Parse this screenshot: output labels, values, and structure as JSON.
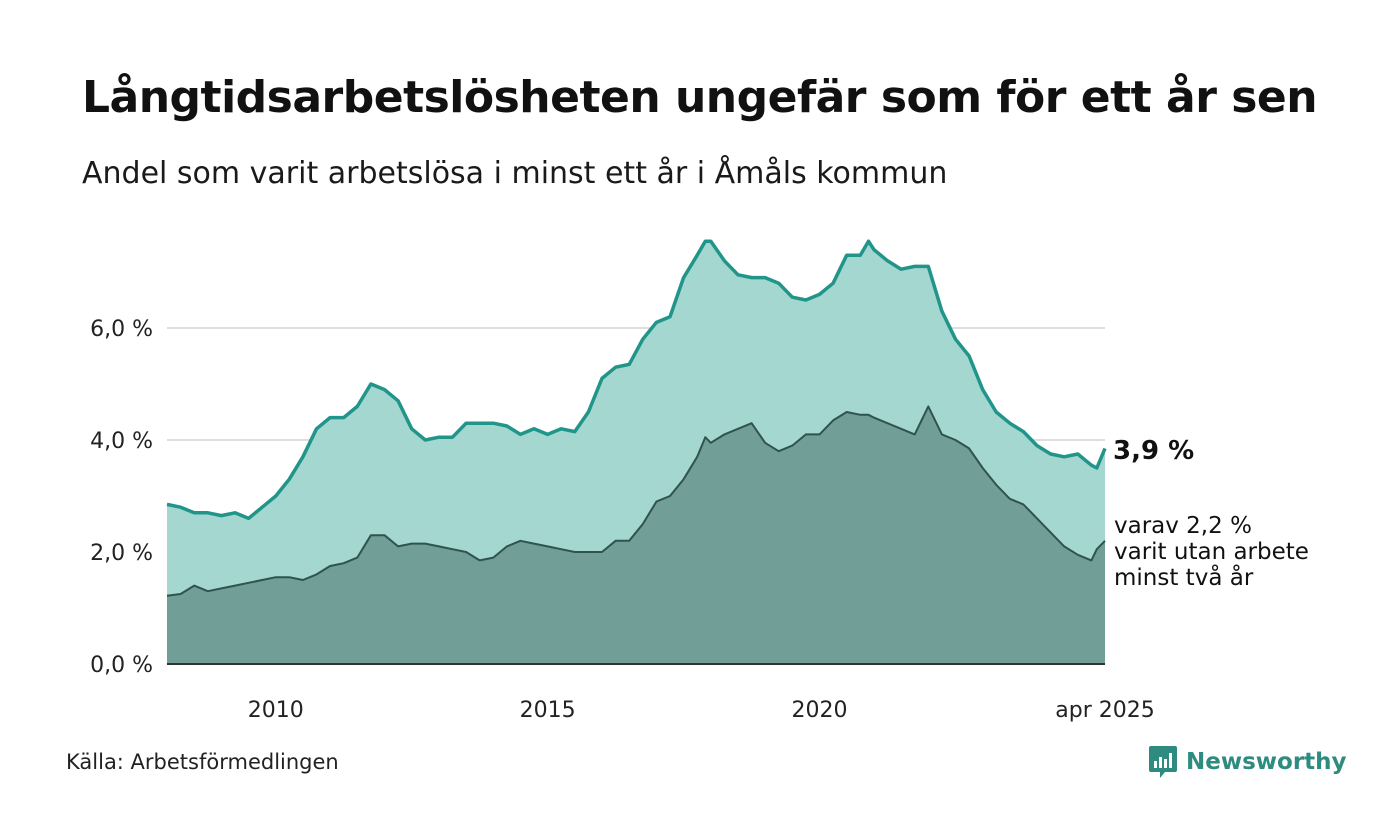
{
  "title": "Långtidsarbetslösheten ungefär som för ett år sen",
  "subtitle": "Andel som varit arbetslösa i minst ett år i Åmåls kommun",
  "source": "Källa: Arbetsförmedlingen",
  "brand": {
    "name": "Newsworthy",
    "logo_icon": "chart-bars-icon"
  },
  "colors": {
    "total_line": "#21958a",
    "total_fill": "#a5d7d1",
    "long_line": "#2f5350",
    "long_fill": "#719e97",
    "grid": "#dedede",
    "brand": "#2e8b80"
  },
  "chart_data": {
    "type": "area",
    "x_axis": {
      "range": [
        2008.0,
        2025.25
      ],
      "tick_labels": [
        "2010",
        "2015",
        "2020",
        "apr 2025"
      ],
      "tick_values": [
        2010,
        2015,
        2020,
        2025.25
      ]
    },
    "y_axis": {
      "range": [
        0,
        8
      ],
      "tick_labels": [
        "0,0 %",
        "2,0 %",
        "4,0 %",
        "6,0 %"
      ],
      "tick_values": [
        0,
        2,
        4,
        6
      ],
      "grid": true
    },
    "series": [
      {
        "key": "total",
        "end_label": "3,9 %",
        "points": [
          [
            2008.0,
            2.85
          ],
          [
            2008.25,
            2.8
          ],
          [
            2008.5,
            2.7
          ],
          [
            2008.75,
            2.7
          ],
          [
            2009.0,
            2.65
          ],
          [
            2009.25,
            2.7
          ],
          [
            2009.5,
            2.6
          ],
          [
            2009.75,
            2.8
          ],
          [
            2010.0,
            3.0
          ],
          [
            2010.25,
            3.3
          ],
          [
            2010.5,
            3.7
          ],
          [
            2010.75,
            4.2
          ],
          [
            2011.0,
            4.4
          ],
          [
            2011.25,
            4.4
          ],
          [
            2011.5,
            4.6
          ],
          [
            2011.75,
            5.0
          ],
          [
            2012.0,
            4.9
          ],
          [
            2012.25,
            4.7
          ],
          [
            2012.5,
            4.2
          ],
          [
            2012.75,
            4.0
          ],
          [
            2013.0,
            4.05
          ],
          [
            2013.25,
            4.05
          ],
          [
            2013.5,
            4.3
          ],
          [
            2013.75,
            4.3
          ],
          [
            2014.0,
            4.3
          ],
          [
            2014.25,
            4.25
          ],
          [
            2014.5,
            4.1
          ],
          [
            2014.75,
            4.2
          ],
          [
            2015.0,
            4.1
          ],
          [
            2015.25,
            4.2
          ],
          [
            2015.5,
            4.15
          ],
          [
            2015.75,
            4.5
          ],
          [
            2016.0,
            5.1
          ],
          [
            2016.25,
            5.3
          ],
          [
            2016.5,
            5.35
          ],
          [
            2016.75,
            5.8
          ],
          [
            2017.0,
            6.1
          ],
          [
            2017.25,
            6.2
          ],
          [
            2017.5,
            6.9
          ],
          [
            2017.75,
            7.3
          ],
          [
            2017.9,
            7.55
          ],
          [
            2018.0,
            7.55
          ],
          [
            2018.25,
            7.2
          ],
          [
            2018.5,
            6.95
          ],
          [
            2018.75,
            6.9
          ],
          [
            2019.0,
            6.9
          ],
          [
            2019.25,
            6.8
          ],
          [
            2019.5,
            6.55
          ],
          [
            2019.75,
            6.5
          ],
          [
            2020.0,
            6.6
          ],
          [
            2020.25,
            6.8
          ],
          [
            2020.5,
            7.3
          ],
          [
            2020.75,
            7.3
          ],
          [
            2020.9,
            7.55
          ],
          [
            2021.0,
            7.4
          ],
          [
            2021.25,
            7.2
          ],
          [
            2021.5,
            7.05
          ],
          [
            2021.75,
            7.1
          ],
          [
            2022.0,
            7.1
          ],
          [
            2022.25,
            6.3
          ],
          [
            2022.5,
            5.8
          ],
          [
            2022.75,
            5.5
          ],
          [
            2023.0,
            4.9
          ],
          [
            2023.25,
            4.5
          ],
          [
            2023.5,
            4.3
          ],
          [
            2023.75,
            4.15
          ],
          [
            2024.0,
            3.9
          ],
          [
            2024.25,
            3.75
          ],
          [
            2024.5,
            3.7
          ],
          [
            2024.75,
            3.75
          ],
          [
            2025.0,
            3.55
          ],
          [
            2025.1,
            3.5
          ],
          [
            2025.25,
            3.85
          ]
        ]
      },
      {
        "key": "long",
        "end_label": "varav 2,2 % varit utan arbete minst två år",
        "end_label_lines": [
          "varav 2,2 %",
          "varit utan arbete",
          "minst två år"
        ],
        "points": [
          [
            2008.0,
            1.22
          ],
          [
            2008.25,
            1.25
          ],
          [
            2008.5,
            1.4
          ],
          [
            2008.75,
            1.3
          ],
          [
            2009.0,
            1.35
          ],
          [
            2009.25,
            1.4
          ],
          [
            2009.5,
            1.45
          ],
          [
            2009.75,
            1.5
          ],
          [
            2010.0,
            1.55
          ],
          [
            2010.25,
            1.55
          ],
          [
            2010.5,
            1.5
          ],
          [
            2010.75,
            1.6
          ],
          [
            2011.0,
            1.75
          ],
          [
            2011.25,
            1.8
          ],
          [
            2011.5,
            1.9
          ],
          [
            2011.75,
            2.3
          ],
          [
            2012.0,
            2.3
          ],
          [
            2012.25,
            2.1
          ],
          [
            2012.5,
            2.15
          ],
          [
            2012.75,
            2.15
          ],
          [
            2013.0,
            2.1
          ],
          [
            2013.25,
            2.05
          ],
          [
            2013.5,
            2.0
          ],
          [
            2013.75,
            1.85
          ],
          [
            2014.0,
            1.9
          ],
          [
            2014.25,
            2.1
          ],
          [
            2014.5,
            2.2
          ],
          [
            2014.75,
            2.15
          ],
          [
            2015.0,
            2.1
          ],
          [
            2015.25,
            2.05
          ],
          [
            2015.5,
            2.0
          ],
          [
            2015.75,
            2.0
          ],
          [
            2016.0,
            2.0
          ],
          [
            2016.25,
            2.2
          ],
          [
            2016.5,
            2.2
          ],
          [
            2016.75,
            2.5
          ],
          [
            2017.0,
            2.9
          ],
          [
            2017.25,
            3.0
          ],
          [
            2017.5,
            3.3
          ],
          [
            2017.75,
            3.7
          ],
          [
            2017.9,
            4.05
          ],
          [
            2018.0,
            3.95
          ],
          [
            2018.25,
            4.1
          ],
          [
            2018.5,
            4.2
          ],
          [
            2018.75,
            4.3
          ],
          [
            2019.0,
            3.95
          ],
          [
            2019.25,
            3.8
          ],
          [
            2019.5,
            3.9
          ],
          [
            2019.75,
            4.1
          ],
          [
            2020.0,
            4.1
          ],
          [
            2020.25,
            4.35
          ],
          [
            2020.5,
            4.5
          ],
          [
            2020.75,
            4.45
          ],
          [
            2020.9,
            4.45
          ],
          [
            2021.0,
            4.4
          ],
          [
            2021.25,
            4.3
          ],
          [
            2021.5,
            4.2
          ],
          [
            2021.75,
            4.1
          ],
          [
            2022.0,
            4.6
          ],
          [
            2022.25,
            4.1
          ],
          [
            2022.5,
            4.0
          ],
          [
            2022.75,
            3.85
          ],
          [
            2023.0,
            3.5
          ],
          [
            2023.25,
            3.2
          ],
          [
            2023.5,
            2.95
          ],
          [
            2023.75,
            2.85
          ],
          [
            2024.0,
            2.6
          ],
          [
            2024.25,
            2.35
          ],
          [
            2024.5,
            2.1
          ],
          [
            2024.75,
            1.95
          ],
          [
            2025.0,
            1.85
          ],
          [
            2025.1,
            2.05
          ],
          [
            2025.25,
            2.2
          ]
        ]
      }
    ]
  }
}
